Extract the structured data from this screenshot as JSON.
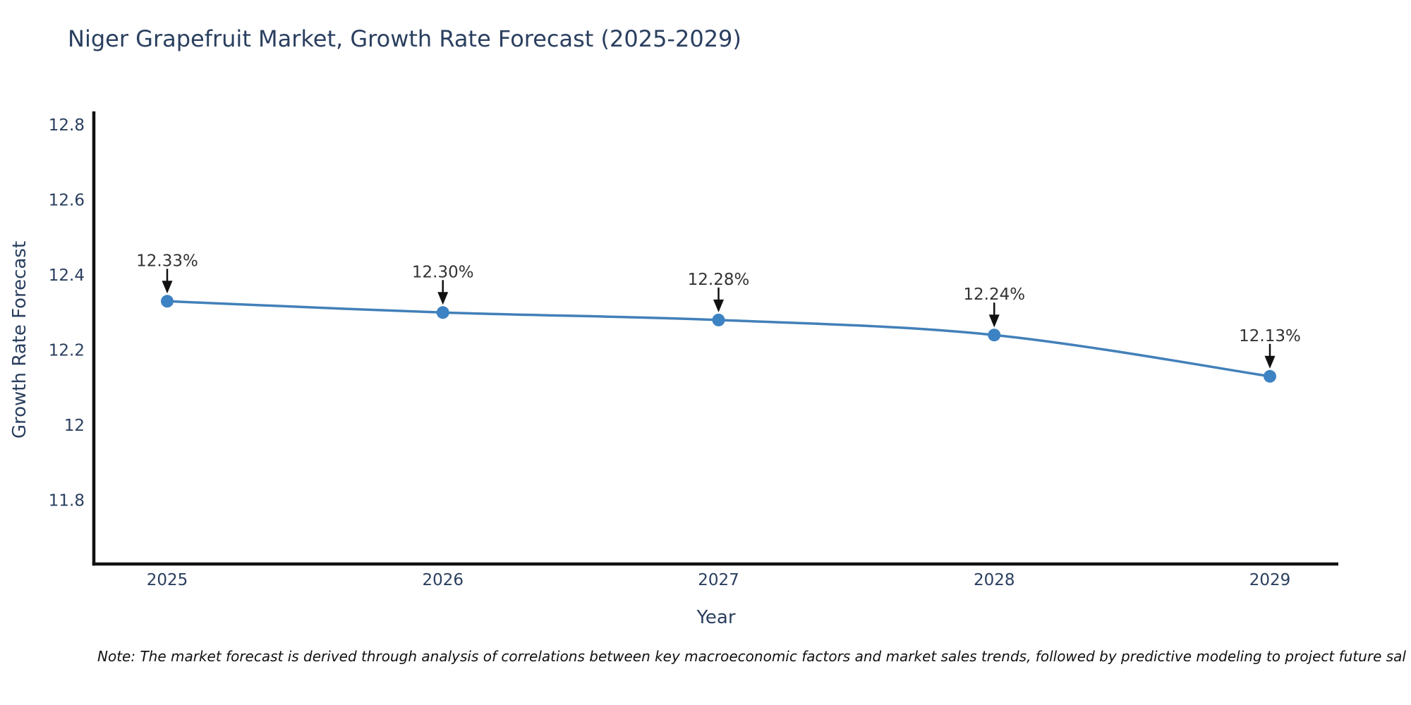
{
  "title": {
    "text": "Niger Grapefruit Market, Growth Rate Forecast (2025-2029)"
  },
  "footnote": {
    "text": "Note: The market forecast is derived through analysis of correlations between key macroeconomic factors and market sales trends, followed by predictive modeling to project future sal"
  },
  "colors": {
    "title_text": "#2a3f5f",
    "tick_text": "#2a3f5f",
    "annotation_text": "#333333",
    "axis_line": "#111111",
    "series_line": "#4280b9",
    "marker_fill": "#3d82c2",
    "background": "#ffffff"
  },
  "chart_data": {
    "type": "line",
    "title": "Niger Grapefruit Market, Growth Rate Forecast (2025-2029)",
    "xlabel": "Year",
    "ylabel": "Growth Rate Forecast",
    "x": [
      2025,
      2026,
      2027,
      2028,
      2029
    ],
    "series": [
      {
        "name": "Growth Rate Forecast",
        "values": [
          12.33,
          12.3,
          12.28,
          12.24,
          12.13
        ]
      }
    ],
    "point_labels": [
      "12.33%",
      "12.30%",
      "12.28%",
      "12.24%",
      "12.13%"
    ],
    "xtick_labels": [
      "2025",
      "2026",
      "2027",
      "2028",
      "2029"
    ],
    "ytick_labels": [
      "11.8",
      "12",
      "12.2",
      "12.4",
      "12.6",
      "12.8"
    ],
    "ytick_values": [
      11.8,
      12.0,
      12.2,
      12.4,
      12.6,
      12.8
    ],
    "ylim": [
      11.63,
      12.832
    ],
    "grid": false,
    "legend": "none",
    "line_shape": "spline",
    "annotation_arrows": "black-down-arrows"
  }
}
